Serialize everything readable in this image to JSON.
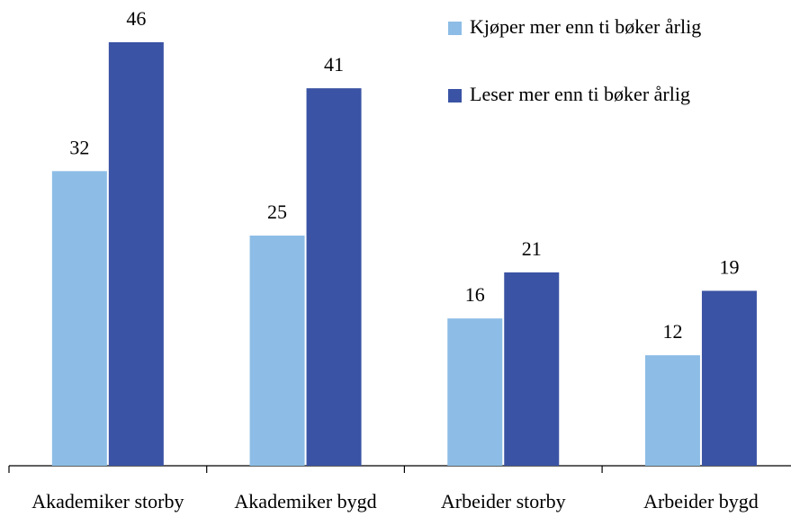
{
  "chart_data": {
    "type": "bar",
    "categories": [
      "Akademiker storby",
      "Akademiker bygd",
      "Arbeider storby",
      "Arbeider bygd"
    ],
    "series": [
      {
        "name": "Kjøper mer enn ti bøker årlig",
        "color": "#8dbde6",
        "values": [
          32,
          25,
          16,
          12
        ]
      },
      {
        "name": "Leser mer enn ti bøker årlig",
        "color": "#3a53a4",
        "values": [
          46,
          41,
          21,
          19
        ]
      }
    ],
    "ylim": [
      0,
      50
    ],
    "legend": "top-right"
  }
}
